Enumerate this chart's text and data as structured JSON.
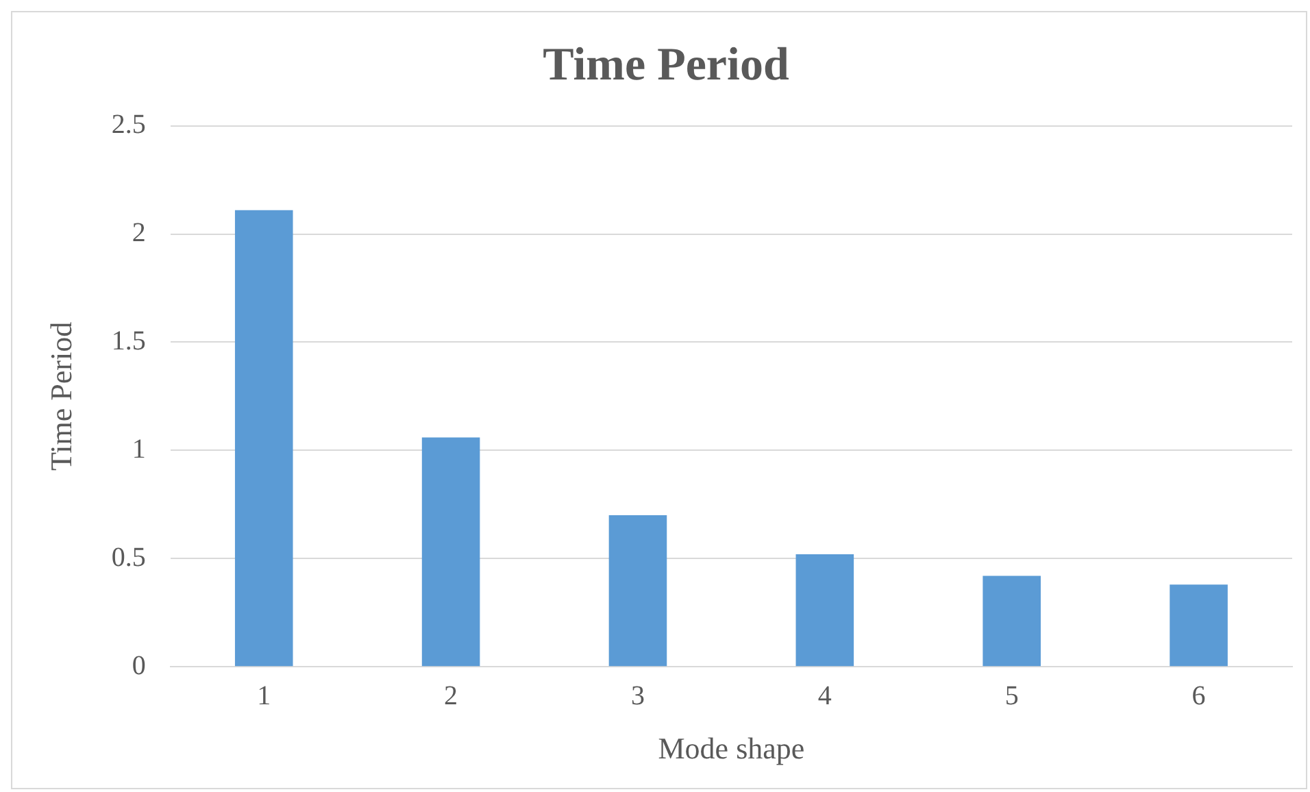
{
  "chart_data": {
    "type": "bar",
    "title": "Time Period",
    "xlabel": "Mode shape",
    "ylabel": "Time Period",
    "categories": [
      "1",
      "2",
      "3",
      "4",
      "5",
      "6"
    ],
    "values": [
      2.11,
      1.06,
      0.7,
      0.52,
      0.42,
      0.38
    ],
    "color": "#5b9bd5",
    "ylim": [
      0,
      2.5
    ],
    "yticks": [
      0,
      0.5,
      1,
      1.5,
      2,
      2.5
    ],
    "grid": "y",
    "legend": false
  }
}
